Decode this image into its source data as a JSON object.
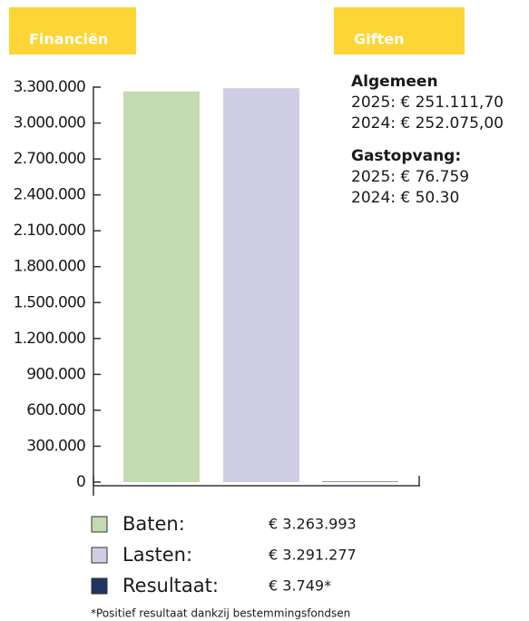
{
  "header": {
    "left": "Financiën",
    "right": "Giften"
  },
  "giften": [
    {
      "heading": "Algemeen",
      "lines": [
        "2025: € 251.111,70",
        "2024: € 252.075,00"
      ]
    },
    {
      "heading": "Gastopvang:",
      "lines": [
        "2025: € 76.759",
        "2024: € 50.30"
      ]
    }
  ],
  "chart_data": {
    "type": "bar",
    "categories": [
      "Baten:",
      "Lasten:",
      "Resultaat:"
    ],
    "values": [
      3263993,
      3291277,
      3749
    ],
    "value_labels": [
      "€ 3.263.993",
      "€ 3.291.277",
      "€ 3.749*"
    ],
    "colors": [
      "#c2dbb0",
      "#cfcde3",
      "#1f3461"
    ],
    "ylim": [
      0,
      3300000
    ],
    "yticks": [
      0,
      {
        "value": 300000,
        "label": "300.000"
      },
      {
        "value": 600000,
        "label": "600.000"
      },
      {
        "value": 900000,
        "label": "900.000"
      },
      {
        "value": 1200000,
        "label": "1.200.000"
      },
      {
        "value": 1500000,
        "label": "1.500.000"
      },
      {
        "value": 1800000,
        "label": "1.800.000"
      },
      {
        "value": 2100000,
        "label": "2.100.000"
      },
      {
        "value": 2400000,
        "label": "2.400.000"
      },
      {
        "value": 2700000,
        "label": "2.700.000"
      },
      {
        "value": 3000000,
        "label": "3.000.000"
      },
      {
        "value": 3300000,
        "label": "3.300.000"
      }
    ],
    "legend": true
  },
  "footnote": "*Positief resultaat dankzij bestemmingsfondsen"
}
